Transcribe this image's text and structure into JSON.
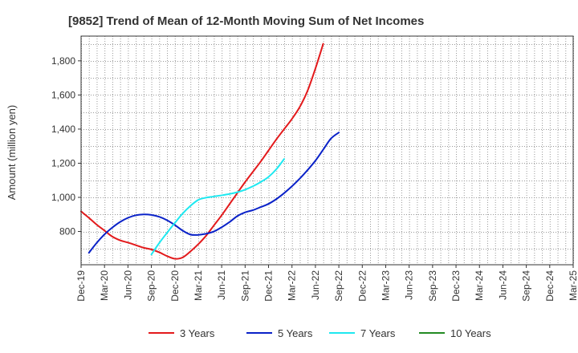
{
  "chart_data": {
    "type": "line",
    "title": "[9852]  Trend of Mean of 12-Month Moving Sum of Net Incomes",
    "xlabel": "",
    "ylabel": "Amount (million yen)",
    "x_ticks": [
      "Dec-19",
      "Mar-20",
      "Jun-20",
      "Sep-20",
      "Dec-20",
      "Mar-21",
      "Jun-21",
      "Sep-21",
      "Dec-21",
      "Mar-22",
      "Jun-22",
      "Sep-22",
      "Dec-22",
      "Mar-23",
      "Jun-23",
      "Sep-23",
      "Dec-23",
      "Mar-24",
      "Jun-24",
      "Sep-24",
      "Dec-24",
      "Mar-25"
    ],
    "y_ticks": [
      800,
      1000,
      1200,
      1400,
      1600,
      1800
    ],
    "y_tick_labels": [
      "800",
      "1,000",
      "1,200",
      "1,400",
      "1,600",
      "1,800"
    ],
    "ylim": [
      605,
      1945
    ],
    "grid": true,
    "legend_position": "bottom",
    "series": [
      {
        "name": "3 Years",
        "color": "#e31a1c",
        "start_index": 0,
        "values": [
          918,
          880,
          840,
          805,
          770,
          748,
          735,
          720,
          705,
          695,
          678,
          656,
          640,
          648,
          683,
          725,
          775,
          835,
          895,
          960,
          1025,
          1090,
          1150,
          1210,
          1275,
          1340,
          1400,
          1460,
          1530,
          1625,
          1755,
          1900
        ]
      },
      {
        "name": "5 Years",
        "color": "#0a22c8",
        "start_index": 1,
        "values": [
          675,
          733,
          783,
          823,
          856,
          880,
          895,
          900,
          897,
          886,
          866,
          838,
          805,
          782,
          780,
          787,
          800,
          825,
          855,
          890,
          912,
          925,
          943,
          962,
          990,
          1025,
          1065,
          1110,
          1160,
          1215,
          1280,
          1345,
          1380
        ]
      },
      {
        "name": "7 Years",
        "color": "#1ee8f0",
        "start_index": 9,
        "values": [
          665,
          732,
          792,
          850,
          905,
          950,
          985,
          998,
          1005,
          1012,
          1020,
          1030,
          1045,
          1065,
          1090,
          1120,
          1165,
          1225
        ]
      },
      {
        "name": "10 Years",
        "color": "#238b23",
        "start_index": 0,
        "values": []
      }
    ]
  }
}
